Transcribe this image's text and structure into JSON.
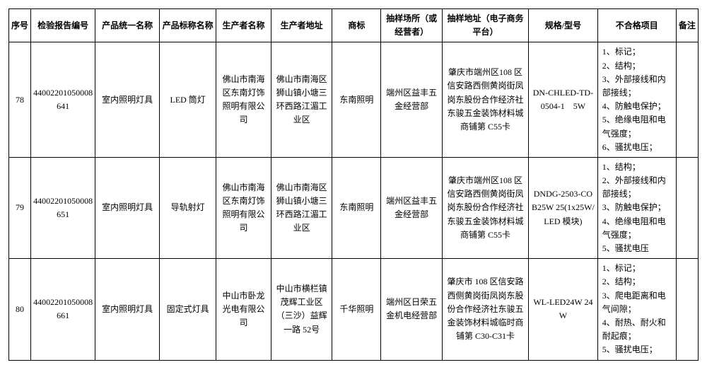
{
  "headers": {
    "seq": "序号",
    "report_no": "检验报告编号",
    "product_name": "产品统一名称",
    "label_name": "产品标称名称",
    "manufacturer": "生产者名称",
    "mfr_address": "生产者地址",
    "brand": "商标",
    "sample_place": "抽样场所（或经营者）",
    "sample_address": "抽样地址（电子商务平台）",
    "spec": "规格/型号",
    "fail_items": "不合格项目",
    "remark": "备注"
  },
  "rows": [
    {
      "seq": "78",
      "report_no": "44002201050008641",
      "product_name": "室内照明灯具",
      "label_name": "LED 筒灯",
      "manufacturer": "佛山市南海区东南灯饰照明有限公司",
      "mfr_address": "佛山市南海区狮山镇小塘三环西路江湄工业区",
      "brand": "东南照明",
      "sample_place": "端州区益丰五金经营部",
      "sample_address": "肇庆市端州区108 区信安路西侧黄岗街凤岗东股份合作经济社东骏五金装饰材料城商铺第 C55卡",
      "spec": "DN-CHLED-TD-0504-1　5W",
      "fail_items": "1、标记；\n2、结构；\n3、外部接线和内部接线；\n4、防触电保护；\n5、绝缘电阻和电气强度；\n6、骚扰电压；",
      "remark": ""
    },
    {
      "seq": "79",
      "report_no": "44002201050008651",
      "product_name": "室内照明灯具",
      "label_name": "导轨射灯",
      "manufacturer": "佛山市南海区东南灯饰照明有限公司",
      "mfr_address": "佛山市南海区狮山镇小塘三环西路江湄工业区",
      "brand": "东南照明",
      "sample_place": "端州区益丰五金经营部",
      "sample_address": "肇庆市端州区108 区信安路西侧黄岗街凤岗东股份合作经济社东骏五金装饰材料城商铺第 C55卡",
      "spec": "DNDG-2503-COB25W 25(1x25W/LED 模块)",
      "fail_items": "1、结构；\n2、外部接线和内部接线；\n3、防触电保护；\n4、绝缘电阻和电气强度；\n5、骚扰电压",
      "remark": ""
    },
    {
      "seq": "80",
      "report_no": "44002201050008661",
      "product_name": "室内照明灯具",
      "label_name": "固定式灯具",
      "manufacturer": "中山市卧龙光电有限公司",
      "mfr_address": "中山市横栏镇茂辉工业区（三沙）益辉一路 52号",
      "brand": "千华照明",
      "sample_place": "端州区日荣五金机电经营部",
      "sample_address": "肇庆市 108 区信安路西侧黄岗街凤岗东股份合作经济社东骏五金装饰材料城临时商铺第 C30-C31卡",
      "spec": "WL-LED24W 24W",
      "fail_items": "1、标记；\n2、结构；\n3、爬电距离和电气间隙；\n4、耐热、耐火和耐起痕；\n5、骚扰电压；",
      "remark": ""
    }
  ],
  "style": {
    "font_family": "SimSun",
    "font_size": 12,
    "border_color": "#000000",
    "background_color": "#ffffff",
    "text_color": "#000000",
    "line_height": 1.6
  }
}
